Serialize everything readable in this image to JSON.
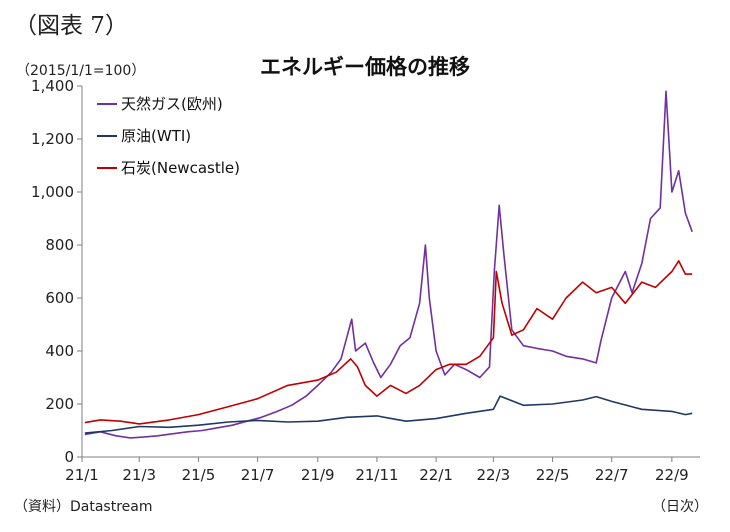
{
  "figure_label": "（図表 7）",
  "unit_label": "（2015/1/1=100）",
  "source_label": "（資料）Datastream",
  "x_unit_label": "（日次）",
  "colors": {
    "gas": "#7030a0",
    "oil": "#1f3864",
    "coal": "#c00000",
    "axis": "#7f7f7f"
  },
  "chart_data": {
    "type": "line",
    "title": "エネルギー価格の推移",
    "ylim": [
      0,
      1400
    ],
    "yticks": [
      0,
      200,
      400,
      600,
      800,
      1000,
      1200,
      1400
    ],
    "ytick_labels": [
      "0",
      "200",
      "400",
      "600",
      "800",
      "1,000",
      "1,200",
      "1,400"
    ],
    "xlim": [
      "2021-01-01",
      "2022-09-30"
    ],
    "xticks": [
      "2021-01-01",
      "2021-03-01",
      "2021-05-01",
      "2021-07-01",
      "2021-09-01",
      "2021-11-01",
      "2022-01-01",
      "2022-03-01",
      "2022-05-01",
      "2022-07-01",
      "2022-09-01"
    ],
    "xtick_labels": [
      "21/1",
      "21/3",
      "21/5",
      "21/7",
      "21/9",
      "21/11",
      "22/1",
      "22/3",
      "22/5",
      "22/7",
      "22/9"
    ],
    "grid": false,
    "legend_position": "top-left",
    "series": [
      {
        "name": "天然ガス(欧州)",
        "color": "#7030a0",
        "points": [
          [
            "2021-01-04",
            85
          ],
          [
            "2021-01-20",
            95
          ],
          [
            "2021-02-05",
            80
          ],
          [
            "2021-02-20",
            72
          ],
          [
            "2021-03-05",
            75
          ],
          [
            "2021-03-20",
            80
          ],
          [
            "2021-04-05",
            88
          ],
          [
            "2021-04-20",
            95
          ],
          [
            "2021-05-05",
            100
          ],
          [
            "2021-05-20",
            110
          ],
          [
            "2021-06-05",
            120
          ],
          [
            "2021-06-20",
            135
          ],
          [
            "2021-07-05",
            150
          ],
          [
            "2021-07-20",
            170
          ],
          [
            "2021-08-05",
            195
          ],
          [
            "2021-08-20",
            230
          ],
          [
            "2021-09-01",
            270
          ],
          [
            "2021-09-15",
            320
          ],
          [
            "2021-09-25",
            370
          ],
          [
            "2021-10-06",
            520
          ],
          [
            "2021-10-10",
            400
          ],
          [
            "2021-10-20",
            430
          ],
          [
            "2021-10-28",
            360
          ],
          [
            "2021-11-05",
            300
          ],
          [
            "2021-11-15",
            350
          ],
          [
            "2021-11-25",
            420
          ],
          [
            "2021-12-05",
            450
          ],
          [
            "2021-12-15",
            580
          ],
          [
            "2021-12-21",
            800
          ],
          [
            "2021-12-25",
            600
          ],
          [
            "2022-01-01",
            400
          ],
          [
            "2022-01-10",
            310
          ],
          [
            "2022-01-20",
            350
          ],
          [
            "2022-02-01",
            330
          ],
          [
            "2022-02-15",
            300
          ],
          [
            "2022-02-25",
            340
          ],
          [
            "2022-03-02",
            700
          ],
          [
            "2022-03-07",
            950
          ],
          [
            "2022-03-12",
            760
          ],
          [
            "2022-03-20",
            480
          ],
          [
            "2022-04-01",
            420
          ],
          [
            "2022-04-15",
            410
          ],
          [
            "2022-05-01",
            400
          ],
          [
            "2022-05-15",
            380
          ],
          [
            "2022-06-01",
            370
          ],
          [
            "2022-06-15",
            355
          ],
          [
            "2022-06-20",
            440
          ],
          [
            "2022-07-01",
            600
          ],
          [
            "2022-07-15",
            700
          ],
          [
            "2022-07-22",
            620
          ],
          [
            "2022-08-01",
            730
          ],
          [
            "2022-08-10",
            900
          ],
          [
            "2022-08-20",
            940
          ],
          [
            "2022-08-26",
            1380
          ],
          [
            "2022-09-01",
            1000
          ],
          [
            "2022-09-08",
            1080
          ],
          [
            "2022-09-15",
            920
          ],
          [
            "2022-09-22",
            850
          ]
        ]
      },
      {
        "name": "原油(WTI)",
        "color": "#1f3864",
        "points": [
          [
            "2021-01-04",
            90
          ],
          [
            "2021-02-01",
            100
          ],
          [
            "2021-03-01",
            115
          ],
          [
            "2021-04-01",
            112
          ],
          [
            "2021-05-01",
            120
          ],
          [
            "2021-06-01",
            132
          ],
          [
            "2021-07-01",
            138
          ],
          [
            "2021-08-01",
            132
          ],
          [
            "2021-09-01",
            135
          ],
          [
            "2021-10-01",
            150
          ],
          [
            "2021-11-01",
            155
          ],
          [
            "2021-12-01",
            135
          ],
          [
            "2022-01-01",
            145
          ],
          [
            "2022-02-01",
            165
          ],
          [
            "2022-03-01",
            180
          ],
          [
            "2022-03-08",
            230
          ],
          [
            "2022-04-01",
            195
          ],
          [
            "2022-05-01",
            200
          ],
          [
            "2022-06-01",
            215
          ],
          [
            "2022-06-15",
            228
          ],
          [
            "2022-07-01",
            210
          ],
          [
            "2022-08-01",
            180
          ],
          [
            "2022-09-01",
            172
          ],
          [
            "2022-09-15",
            160
          ],
          [
            "2022-09-22",
            165
          ]
        ]
      },
      {
        "name": "石炭(Newcastle)",
        "color": "#c00000",
        "points": [
          [
            "2021-01-04",
            130
          ],
          [
            "2021-01-20",
            140
          ],
          [
            "2021-02-10",
            135
          ],
          [
            "2021-03-01",
            125
          ],
          [
            "2021-04-01",
            140
          ],
          [
            "2021-05-01",
            160
          ],
          [
            "2021-06-01",
            190
          ],
          [
            "2021-07-01",
            220
          ],
          [
            "2021-08-01",
            270
          ],
          [
            "2021-09-01",
            290
          ],
          [
            "2021-09-20",
            320
          ],
          [
            "2021-10-05",
            370
          ],
          [
            "2021-10-12",
            340
          ],
          [
            "2021-10-20",
            270
          ],
          [
            "2021-11-01",
            230
          ],
          [
            "2021-11-15",
            270
          ],
          [
            "2021-12-01",
            240
          ],
          [
            "2021-12-15",
            270
          ],
          [
            "2022-01-01",
            330
          ],
          [
            "2022-01-15",
            350
          ],
          [
            "2022-02-01",
            350
          ],
          [
            "2022-02-15",
            380
          ],
          [
            "2022-03-01",
            450
          ],
          [
            "2022-03-04",
            700
          ],
          [
            "2022-03-10",
            580
          ],
          [
            "2022-03-20",
            460
          ],
          [
            "2022-04-01",
            480
          ],
          [
            "2022-04-15",
            560
          ],
          [
            "2022-05-01",
            520
          ],
          [
            "2022-05-15",
            600
          ],
          [
            "2022-06-01",
            660
          ],
          [
            "2022-06-15",
            620
          ],
          [
            "2022-07-01",
            640
          ],
          [
            "2022-07-15",
            580
          ],
          [
            "2022-08-01",
            660
          ],
          [
            "2022-08-15",
            640
          ],
          [
            "2022-09-01",
            700
          ],
          [
            "2022-09-08",
            740
          ],
          [
            "2022-09-15",
            690
          ],
          [
            "2022-09-22",
            690
          ]
        ]
      }
    ]
  }
}
